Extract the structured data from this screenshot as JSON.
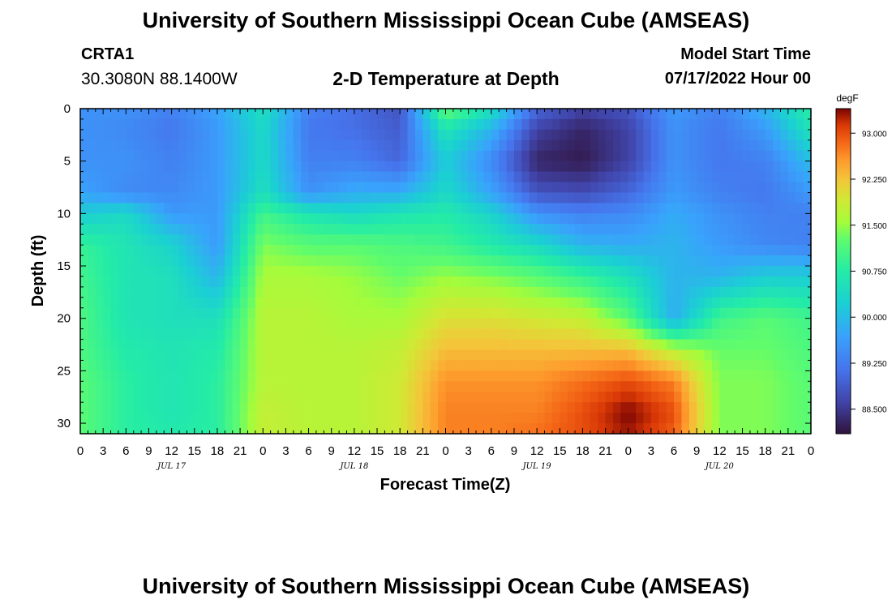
{
  "header": {
    "title": "University of Southern Mississippi Ocean Cube (AMSEAS)",
    "station_id": "CRTA1",
    "station_coords": "30.3080N  88.1400W",
    "chart_title": "2-D Temperature at Depth",
    "model_label": "Model Start Time",
    "model_date": "07/17/2022 Hour 00"
  },
  "footer": {
    "title": "University of Southern Mississippi Ocean Cube (AMSEAS)"
  },
  "chart_data": {
    "type": "heatmap",
    "title": "2-D Temperature at Depth",
    "xlabel": "Forecast Time(Z)",
    "ylabel": "Depth (ft)",
    "x_range_hours": [
      0,
      96
    ],
    "ylim": [
      0,
      31
    ],
    "y_inverted": true,
    "x_ticks_hours": [
      0,
      3,
      6,
      9,
      12,
      15,
      18,
      21,
      24,
      27,
      30,
      33,
      36,
      39,
      42,
      45,
      48,
      51,
      54,
      57,
      60,
      63,
      66,
      69,
      72,
      75,
      78,
      81,
      84,
      87,
      90,
      93,
      96
    ],
    "x_tick_labels": [
      "0",
      "3",
      "6",
      "9",
      "12",
      "15",
      "18",
      "21",
      "0",
      "3",
      "6",
      "9",
      "12",
      "15",
      "18",
      "21",
      "0",
      "3",
      "6",
      "9",
      "12",
      "15",
      "18",
      "21",
      "0",
      "3",
      "6",
      "9",
      "12",
      "15",
      "18",
      "21",
      "0"
    ],
    "date_labels": [
      {
        "label": "JUL 17",
        "hour": 12
      },
      {
        "label": "JUL 18",
        "hour": 36
      },
      {
        "label": "JUL 19",
        "hour": 60
      },
      {
        "label": "JUL 20",
        "hour": 84
      }
    ],
    "y_ticks": [
      0,
      5,
      10,
      15,
      20,
      25,
      30
    ],
    "y_tick_labels": [
      "0",
      "5",
      "10",
      "15",
      "20",
      "25",
      "30"
    ],
    "colorbar": {
      "unit": "degF",
      "vmin": 88.1,
      "vmax": 93.4,
      "ticks": [
        88.5,
        89.25,
        90.0,
        90.75,
        91.5,
        92.25,
        93.0
      ],
      "tick_labels": [
        "88.500",
        "89.250",
        "90.000",
        "90.750",
        "91.500",
        "92.250",
        "93.000"
      ]
    },
    "depths_ft": [
      0,
      2,
      5,
      8,
      10,
      13,
      16,
      20,
      23,
      26,
      29,
      31
    ],
    "hours": [
      0,
      6,
      12,
      18,
      24,
      30,
      36,
      42,
      48,
      54,
      60,
      66,
      72,
      78,
      84,
      90,
      96
    ],
    "temperature_degF": [
      [
        89.5,
        89.5,
        89.3,
        89.7,
        90.5,
        89.3,
        89.1,
        88.8,
        91.3,
        90.5,
        89.0,
        88.6,
        88.8,
        89.6,
        89.3,
        89.9,
        90.8
      ],
      [
        89.5,
        89.4,
        89.2,
        89.6,
        90.4,
        89.2,
        89.1,
        88.9,
        90.6,
        89.9,
        88.6,
        88.3,
        88.6,
        89.5,
        89.2,
        89.6,
        90.6
      ],
      [
        89.5,
        89.5,
        89.3,
        89.6,
        90.4,
        89.3,
        89.3,
        89.0,
        90.2,
        89.4,
        88.3,
        88.2,
        88.6,
        89.5,
        89.2,
        89.3,
        90.0
      ],
      [
        89.7,
        89.4,
        89.4,
        89.6,
        90.5,
        89.5,
        89.8,
        89.8,
        90.4,
        89.7,
        88.8,
        88.7,
        89.0,
        89.6,
        89.3,
        89.2,
        89.6
      ],
      [
        90.2,
        90.4,
        89.6,
        89.6,
        91.0,
        90.6,
        90.4,
        90.6,
        90.7,
        90.3,
        89.5,
        89.3,
        89.4,
        89.8,
        89.5,
        89.3,
        89.3
      ],
      [
        90.9,
        90.6,
        90.3,
        89.6,
        91.4,
        91.2,
        91.2,
        91.1,
        91.0,
        90.7,
        90.4,
        89.9,
        89.8,
        89.9,
        89.6,
        89.4,
        89.3
      ],
      [
        91.0,
        90.6,
        90.5,
        89.9,
        91.6,
        91.6,
        91.5,
        91.3,
        91.5,
        91.4,
        91.2,
        90.9,
        90.5,
        89.9,
        89.9,
        90.2,
        90.2
      ],
      [
        91.1,
        90.6,
        90.5,
        90.5,
        91.7,
        91.7,
        91.6,
        91.6,
        92.0,
        92.0,
        91.9,
        91.8,
        91.2,
        89.8,
        91.0,
        91.2,
        91.0
      ],
      [
        91.1,
        90.7,
        90.6,
        90.7,
        91.7,
        91.7,
        91.7,
        91.8,
        92.3,
        92.3,
        92.3,
        92.3,
        92.3,
        91.7,
        91.3,
        91.3,
        91.1
      ],
      [
        91.2,
        90.8,
        90.6,
        90.8,
        91.7,
        91.7,
        91.7,
        91.9,
        92.6,
        92.6,
        92.6,
        92.8,
        93.0,
        92.7,
        91.4,
        91.4,
        91.2
      ],
      [
        91.2,
        90.8,
        90.6,
        90.8,
        91.8,
        91.7,
        91.7,
        91.9,
        92.7,
        92.7,
        92.7,
        93.0,
        93.4,
        93.0,
        91.4,
        91.4,
        91.2
      ],
      [
        91.2,
        90.8,
        90.7,
        90.8,
        91.8,
        91.7,
        91.7,
        91.9,
        92.7,
        92.7,
        92.8,
        93.0,
        93.3,
        92.9,
        91.4,
        91.4,
        91.2
      ]
    ]
  }
}
